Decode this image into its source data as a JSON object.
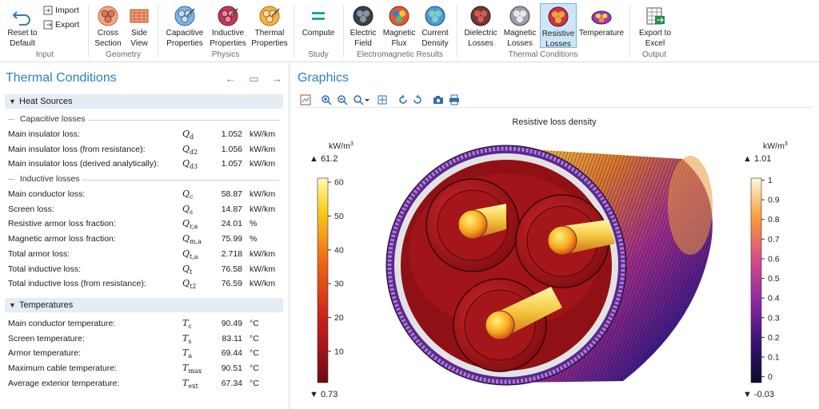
{
  "ribbon": {
    "input": {
      "label": "Input",
      "reset_line1": "Reset to",
      "reset_line2": "Default",
      "import": "Import",
      "export": "Export"
    },
    "geometry": {
      "label": "Geometry",
      "cross_line1": "Cross",
      "cross_line2": "Section",
      "side_line1": "Side",
      "side_line2": "View"
    },
    "physics": {
      "label": "Physics",
      "cap_line1": "Capacitive",
      "cap_line2": "Properties",
      "ind_line1": "Inductive",
      "ind_line2": "Properties",
      "therm_line1": "Thermal",
      "therm_line2": "Properties"
    },
    "study": {
      "label": "Study",
      "compute": "Compute"
    },
    "em_results": {
      "label": "Electromagnetic Results",
      "ef_line1": "Electric",
      "ef_line2": "Field",
      "mf_line1": "Magnetic",
      "mf_line2": "Flux",
      "cd_line1": "Current",
      "cd_line2": "Density"
    },
    "thermal": {
      "label": "Thermal Conditions",
      "dl_line1": "Dielectric",
      "dl_line2": "Losses",
      "ml_line1": "Magnetic",
      "ml_line2": "Losses",
      "rl_line1": "Resistive",
      "rl_line2": "Losses",
      "temp": "Temperature"
    },
    "output": {
      "label": "Output",
      "ex_line1": "Export to",
      "ex_line2": "Excel"
    }
  },
  "left_panel": {
    "title": "Thermal Conditions",
    "heat_sources": {
      "title": "Heat Sources",
      "capacitive_title": "Capacitive losses",
      "capacitive": [
        {
          "label": "Main insulator loss:",
          "sym": "Q",
          "sub": "d",
          "value": "1.052",
          "unit": "kW/km"
        },
        {
          "label": "Main insulator loss (from resistance):",
          "sym": "Q",
          "sub": "d2",
          "value": "1.056",
          "unit": "kW/km"
        },
        {
          "label": "Main insulator loss (derived analytically):",
          "sym": "Q",
          "sub": "d3",
          "value": "1.057",
          "unit": "kW/km"
        }
      ],
      "inductive_title": "Inductive losses",
      "inductive": [
        {
          "label": "Main conductor loss:",
          "sym": "Q",
          "sub": "c",
          "value": "58.87",
          "unit": "kW/km"
        },
        {
          "label": "Screen loss:",
          "sym": "Q",
          "sub": "s",
          "value": "14.87",
          "unit": "kW/km"
        },
        {
          "label": "Resistive armor loss fraction:",
          "sym": "Q",
          "sub": "r,a",
          "value": "24.01",
          "unit": "%"
        },
        {
          "label": "Magnetic armor loss fraction:",
          "sym": "Q",
          "sub": "m,a",
          "value": "75.99",
          "unit": "%"
        },
        {
          "label": "Total armor loss:",
          "sym": "Q",
          "sub": "t,a",
          "value": "2.718",
          "unit": "kW/km"
        },
        {
          "label": "Total inductive loss:",
          "sym": "Q",
          "sub": "t",
          "value": "76.58",
          "unit": "kW/km"
        },
        {
          "label": "Total inductive loss (from resistance):",
          "sym": "Q",
          "sub": "t2",
          "value": "76.59",
          "unit": "kW/km"
        }
      ]
    },
    "temperatures": {
      "title": "Temperatures",
      "rows": [
        {
          "label": "Main conductor temperature:",
          "sym": "T",
          "sub": "c",
          "value": "90.49",
          "unit": "°C"
        },
        {
          "label": "Screen temperature:",
          "sym": "T",
          "sub": "s",
          "value": "83.11",
          "unit": "°C"
        },
        {
          "label": "Armor temperature:",
          "sym": "T",
          "sub": "a",
          "value": "69.44",
          "unit": "°C"
        },
        {
          "label": "Maximum cable temperature:",
          "sym": "T",
          "sub": "max",
          "value": "90.51",
          "unit": "°C"
        },
        {
          "label": "Average exterior temperature:",
          "sym": "T",
          "sub": "ext",
          "value": "67.34",
          "unit": "°C"
        }
      ]
    }
  },
  "graphics": {
    "title": "Graphics",
    "plot_title": "Resistive loss density",
    "left_legend": {
      "unit": "kW/m",
      "unit_exp": "3",
      "max": "▲ 61.2",
      "min": "▼ 0.73",
      "ticks": [
        "60",
        "50",
        "40",
        "30",
        "20",
        "10"
      ],
      "tick_values": [
        60,
        50,
        40,
        30,
        20,
        10
      ],
      "range": [
        0.73,
        61.2
      ]
    },
    "right_legend": {
      "unit": "kW/m",
      "unit_exp": "3",
      "max": "▲ 1.01",
      "min": "▼ -0.03",
      "ticks": [
        "1",
        "0.9",
        "0.8",
        "0.7",
        "0.6",
        "0.5",
        "0.4",
        "0.3",
        "0.2",
        "0.1",
        "0"
      ],
      "tick_values": [
        1,
        0.9,
        0.8,
        0.7,
        0.6,
        0.5,
        0.4,
        0.3,
        0.2,
        0.1,
        0
      ],
      "range": [
        -0.03,
        1.01
      ]
    }
  },
  "colors": {
    "accent": "#2f80b8",
    "section_bg": "#e4ecf4",
    "active_button": "#cde6f7"
  }
}
